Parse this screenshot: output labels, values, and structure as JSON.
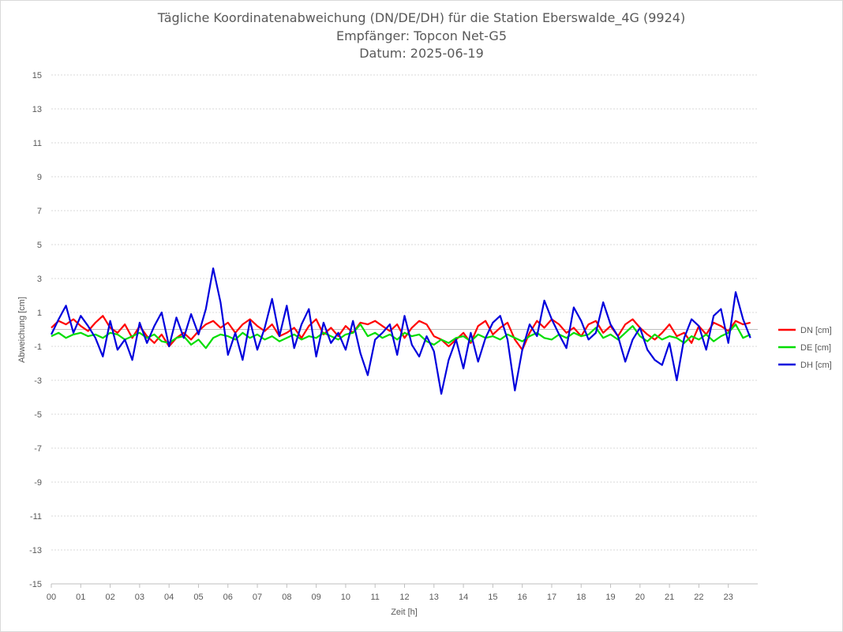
{
  "chart_data": {
    "type": "line",
    "title_lines": [
      "Tägliche Koordinatenabweichung (DN/DE/DH) für die Station Eberswalde_4G (9924)",
      "Empfänger: Topcon Net-G5",
      "Datum: 2025-06-19"
    ],
    "xlabel": "Zeit [h]",
    "ylabel": "Abweichung [cm]",
    "x_tick_labels": [
      "00",
      "01",
      "02",
      "03",
      "04",
      "05",
      "06",
      "07",
      "08",
      "09",
      "10",
      "11",
      "12",
      "13",
      "14",
      "15",
      "16",
      "17",
      "18",
      "19",
      "20",
      "21",
      "22",
      "23"
    ],
    "y_ticks": [
      15,
      13,
      11,
      9,
      7,
      5,
      3,
      1,
      -1,
      -3,
      -5,
      -7,
      -9,
      -11,
      -13,
      -15
    ],
    "ylim": [
      -15,
      15
    ],
    "xlim": [
      0,
      24
    ],
    "grid": true,
    "legend_position": "right",
    "series": [
      {
        "name": "DN [cm]",
        "color": "#ff0000",
        "x": [
          0.0,
          0.25,
          0.5,
          0.75,
          1.0,
          1.25,
          1.5,
          1.75,
          2.0,
          2.25,
          2.5,
          2.75,
          3.0,
          3.25,
          3.5,
          3.75,
          4.0,
          4.25,
          4.5,
          4.75,
          5.0,
          5.25,
          5.5,
          5.75,
          6.0,
          6.25,
          6.5,
          6.75,
          7.0,
          7.25,
          7.5,
          7.75,
          8.0,
          8.25,
          8.5,
          8.75,
          9.0,
          9.25,
          9.5,
          9.75,
          10.0,
          10.25,
          10.5,
          10.75,
          11.0,
          11.25,
          11.5,
          11.75,
          12.0,
          12.25,
          12.5,
          12.75,
          13.0,
          13.25,
          13.5,
          13.75,
          14.0,
          14.25,
          14.5,
          14.75,
          15.0,
          15.25,
          15.5,
          15.75,
          16.0,
          16.25,
          16.5,
          16.75,
          17.0,
          17.25,
          17.5,
          17.75,
          18.0,
          18.25,
          18.5,
          18.75,
          19.0,
          19.25,
          19.5,
          19.75,
          20.0,
          20.25,
          20.5,
          20.75,
          21.0,
          21.25,
          21.5,
          21.75,
          22.0,
          22.25,
          22.5,
          22.75,
          23.0,
          23.25,
          23.5,
          23.75
        ],
        "values": [
          0.1,
          0.5,
          0.3,
          0.6,
          0.2,
          -0.1,
          0.4,
          0.8,
          0.1,
          -0.2,
          0.3,
          -0.5,
          0.2,
          -0.4,
          -0.8,
          -0.3,
          -1.0,
          -0.5,
          -0.2,
          -0.6,
          -0.1,
          0.3,
          0.5,
          0.1,
          0.4,
          -0.2,
          0.3,
          0.6,
          0.2,
          -0.1,
          0.3,
          -0.4,
          -0.2,
          0.1,
          -0.5,
          0.2,
          0.6,
          -0.3,
          0.1,
          -0.4,
          0.2,
          -0.2,
          0.4,
          0.3,
          0.5,
          0.2,
          -0.1,
          0.3,
          -0.5,
          0.1,
          0.5,
          0.3,
          -0.4,
          -0.6,
          -1.0,
          -0.6,
          -0.2,
          -0.8,
          0.2,
          0.5,
          -0.3,
          0.1,
          0.4,
          -0.6,
          -1.2,
          -0.2,
          0.5,
          0.1,
          0.6,
          0.3,
          -0.2,
          0.1,
          -0.4,
          0.3,
          0.5,
          -0.2,
          0.2,
          -0.4,
          0.3,
          0.6,
          0.1,
          -0.3,
          -0.6,
          -0.2,
          0.3,
          -0.4,
          -0.2,
          -0.8,
          0.2,
          -0.3,
          0.4,
          0.2,
          -0.1,
          0.5,
          0.3,
          0.4
        ]
      },
      {
        "name": "DE [cm]",
        "color": "#00dd00",
        "x": [
          0.0,
          0.25,
          0.5,
          0.75,
          1.0,
          1.25,
          1.5,
          1.75,
          2.0,
          2.25,
          2.5,
          2.75,
          3.0,
          3.25,
          3.5,
          3.75,
          4.0,
          4.25,
          4.5,
          4.75,
          5.0,
          5.25,
          5.5,
          5.75,
          6.0,
          6.25,
          6.5,
          6.75,
          7.0,
          7.25,
          7.5,
          7.75,
          8.0,
          8.25,
          8.5,
          8.75,
          9.0,
          9.25,
          9.5,
          9.75,
          10.0,
          10.25,
          10.5,
          10.75,
          11.0,
          11.25,
          11.5,
          11.75,
          12.0,
          12.25,
          12.5,
          12.75,
          13.0,
          13.25,
          13.5,
          13.75,
          14.0,
          14.25,
          14.5,
          14.75,
          15.0,
          15.25,
          15.5,
          15.75,
          16.0,
          16.25,
          16.5,
          16.75,
          17.0,
          17.25,
          17.5,
          17.75,
          18.0,
          18.25,
          18.5,
          18.75,
          19.0,
          19.25,
          19.5,
          19.75,
          20.0,
          20.25,
          20.5,
          20.75,
          21.0,
          21.25,
          21.5,
          21.75,
          22.0,
          22.25,
          22.5,
          22.75,
          23.0,
          23.25,
          23.5,
          23.75
        ],
        "values": [
          -0.4,
          -0.2,
          -0.5,
          -0.3,
          -0.2,
          -0.4,
          -0.3,
          -0.5,
          -0.2,
          -0.3,
          -0.6,
          -0.4,
          -0.2,
          -0.5,
          -0.3,
          -0.7,
          -0.8,
          -0.5,
          -0.4,
          -0.9,
          -0.6,
          -1.1,
          -0.5,
          -0.3,
          -0.4,
          -0.6,
          -0.2,
          -0.5,
          -0.3,
          -0.6,
          -0.4,
          -0.7,
          -0.5,
          -0.3,
          -0.6,
          -0.4,
          -0.5,
          -0.2,
          -0.4,
          -0.6,
          -0.3,
          -0.2,
          0.3,
          -0.4,
          -0.2,
          -0.5,
          -0.3,
          -0.6,
          -0.2,
          -0.4,
          -0.3,
          -0.7,
          -0.9,
          -0.6,
          -0.8,
          -0.5,
          -0.4,
          -0.7,
          -0.3,
          -0.5,
          -0.4,
          -0.6,
          -0.3,
          -0.5,
          -0.7,
          -0.4,
          -0.2,
          -0.5,
          -0.6,
          -0.3,
          -0.5,
          -0.2,
          -0.4,
          -0.3,
          0.1,
          -0.5,
          -0.3,
          -0.6,
          -0.2,
          0.2,
          -0.4,
          -0.7,
          -0.3,
          -0.6,
          -0.4,
          -0.5,
          -0.8,
          -0.4,
          -0.6,
          -0.3,
          -0.7,
          -0.4,
          -0.2,
          0.3,
          -0.5,
          -0.3
        ]
      },
      {
        "name": "DH [cm]",
        "color": "#0000dd",
        "x": [
          0.0,
          0.25,
          0.5,
          0.75,
          1.0,
          1.25,
          1.5,
          1.75,
          2.0,
          2.25,
          2.5,
          2.75,
          3.0,
          3.25,
          3.5,
          3.75,
          4.0,
          4.25,
          4.5,
          4.75,
          5.0,
          5.25,
          5.5,
          5.75,
          6.0,
          6.25,
          6.5,
          6.75,
          7.0,
          7.25,
          7.5,
          7.75,
          8.0,
          8.25,
          8.5,
          8.75,
          9.0,
          9.25,
          9.5,
          9.75,
          10.0,
          10.25,
          10.5,
          10.75,
          11.0,
          11.25,
          11.5,
          11.75,
          12.0,
          12.25,
          12.5,
          12.75,
          13.0,
          13.25,
          13.5,
          13.75,
          14.0,
          14.25,
          14.5,
          14.75,
          15.0,
          15.25,
          15.5,
          15.75,
          16.0,
          16.25,
          16.5,
          16.75,
          17.0,
          17.25,
          17.5,
          17.75,
          18.0,
          18.25,
          18.5,
          18.75,
          19.0,
          19.25,
          19.5,
          19.75,
          20.0,
          20.25,
          20.5,
          20.75,
          21.0,
          21.25,
          21.5,
          21.75,
          22.0,
          22.25,
          22.5,
          22.75,
          23.0,
          23.25,
          23.5,
          23.75
        ],
        "values": [
          -0.3,
          0.6,
          1.4,
          -0.2,
          0.8,
          0.2,
          -0.5,
          -1.6,
          0.5,
          -1.2,
          -0.6,
          -1.8,
          0.4,
          -0.8,
          0.2,
          1.0,
          -1.0,
          0.7,
          -0.5,
          0.9,
          -0.3,
          1.2,
          3.6,
          1.6,
          -1.5,
          -0.2,
          -1.8,
          0.5,
          -1.2,
          0.1,
          1.8,
          -0.4,
          1.4,
          -1.1,
          0.3,
          1.2,
          -1.6,
          0.4,
          -0.8,
          -0.2,
          -1.2,
          0.5,
          -1.4,
          -2.7,
          -0.6,
          -0.2,
          0.3,
          -1.5,
          0.8,
          -0.9,
          -1.6,
          -0.4,
          -1.3,
          -3.8,
          -1.8,
          -0.6,
          -2.3,
          -0.2,
          -1.9,
          -0.5,
          0.4,
          0.8,
          -0.6,
          -3.6,
          -1.2,
          0.3,
          -0.4,
          1.7,
          0.6,
          -0.3,
          -1.1,
          1.3,
          0.5,
          -0.6,
          -0.2,
          1.6,
          0.3,
          -0.4,
          -1.9,
          -0.6,
          0.1,
          -1.2,
          -1.8,
          -2.1,
          -0.8,
          -3.0,
          -0.5,
          0.6,
          0.2,
          -1.2,
          0.8,
          1.2,
          -0.8,
          2.2,
          0.6,
          -0.5
        ]
      }
    ]
  }
}
